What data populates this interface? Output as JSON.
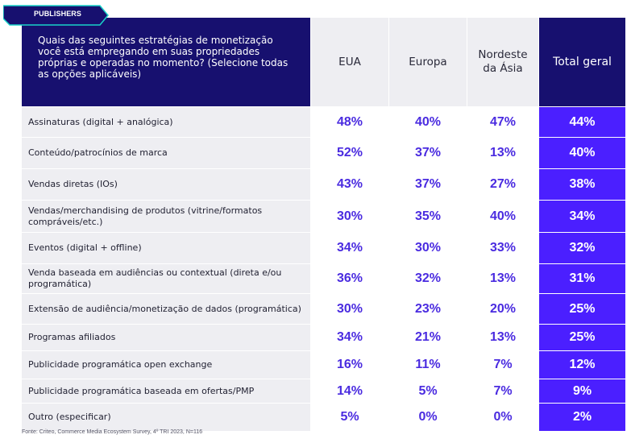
{
  "tag": "PUBLISHERS",
  "question": "Quais das seguintes estratégias de monetização você está empregando em suas propriedades próprias e operadas no momento? (Selecione todas as opções aplicáveis)",
  "columns": [
    "EUA",
    "Europa",
    "Nordeste da Ásia",
    "Total geral"
  ],
  "colors": {
    "header_bg": "#17106f",
    "total_bg": "#4b1fff",
    "value_text": "#4a2be0",
    "label_bg": "#eeeef2"
  },
  "chart_data": {
    "type": "table",
    "columns": [
      "EUA",
      "Europa",
      "Nordeste da Ásia",
      "Total geral"
    ],
    "rows": [
      {
        "label": "Assinaturas (digital + analógica)",
        "values": [
          "48%",
          "40%",
          "47%",
          "44%"
        ]
      },
      {
        "label": "Conteúdo/patrocínios de marca",
        "values": [
          "52%",
          "37%",
          "13%",
          "40%"
        ]
      },
      {
        "label": "Vendas diretas (IOs)",
        "values": [
          "43%",
          "37%",
          "27%",
          "38%"
        ]
      },
      {
        "label": "Vendas/merchandising de produtos (vitrine/formatos compráveis/etc.)",
        "values": [
          "30%",
          "35%",
          "40%",
          "34%"
        ]
      },
      {
        "label": "Eventos (digital + offline)",
        "values": [
          "34%",
          "30%",
          "33%",
          "32%"
        ]
      },
      {
        "label": "Venda baseada em audiências ou contextual (direta e/ou programática)",
        "values": [
          "36%",
          "32%",
          "13%",
          "31%"
        ]
      },
      {
        "label": "Extensão de audiência/monetização de dados (programática)",
        "values": [
          "30%",
          "23%",
          "20%",
          "25%"
        ]
      },
      {
        "label": "Programas afiliados",
        "values": [
          "34%",
          "21%",
          "13%",
          "25%"
        ]
      },
      {
        "label": "Publicidade programática open exchange",
        "values": [
          "16%",
          "11%",
          "7%",
          "12%"
        ]
      },
      {
        "label": "Publicidade programática baseada em ofertas/PMP",
        "values": [
          "14%",
          "5%",
          "7%",
          "9%"
        ]
      },
      {
        "label": "Outro (especificar)",
        "values": [
          "5%",
          "0%",
          "0%",
          "2%"
        ]
      }
    ]
  },
  "footer": "Fonte: Criteo, Commerce Media Ecosystem Survey, 4º TRI 2023, N=116"
}
